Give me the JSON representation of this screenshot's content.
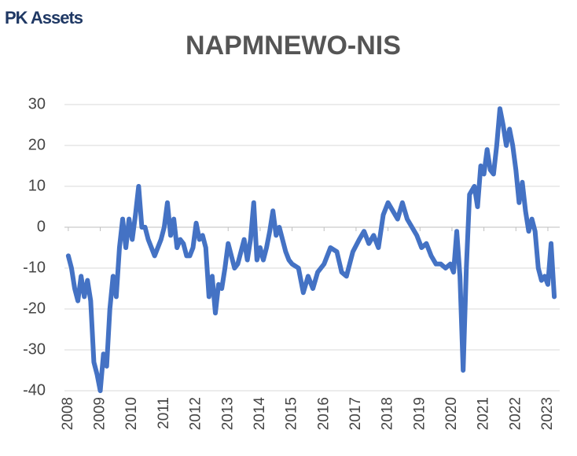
{
  "brand": "PK Assets",
  "chart_data": {
    "type": "line",
    "title": "NAPMNEWO-NIS",
    "x": [
      2008.0,
      2008.1,
      2008.2,
      2008.3,
      2008.4,
      2008.5,
      2008.6,
      2008.7,
      2008.8,
      2008.9,
      2009.0,
      2009.1,
      2009.2,
      2009.3,
      2009.4,
      2009.5,
      2009.6,
      2009.7,
      2009.8,
      2009.9,
      2010.0,
      2010.1,
      2010.2,
      2010.3,
      2010.4,
      2010.5,
      2010.6,
      2010.7,
      2010.8,
      2010.9,
      2011.0,
      2011.1,
      2011.2,
      2011.3,
      2011.4,
      2011.5,
      2011.6,
      2011.7,
      2011.8,
      2011.9,
      2012.0,
      2012.1,
      2012.2,
      2012.3,
      2012.4,
      2012.5,
      2012.6,
      2012.7,
      2012.8,
      2012.9,
      2013.0,
      2013.1,
      2013.2,
      2013.3,
      2013.4,
      2013.5,
      2013.6,
      2013.7,
      2013.8,
      2013.9,
      2014.0,
      2014.1,
      2014.2,
      2014.3,
      2014.4,
      2014.5,
      2014.6,
      2014.7,
      2014.8,
      2014.9,
      2015.0,
      2015.2,
      2015.35,
      2015.5,
      2015.65,
      2015.8,
      2016.0,
      2016.2,
      2016.4,
      2016.55,
      2016.7,
      2016.9,
      2017.1,
      2017.25,
      2017.4,
      2017.55,
      2017.7,
      2017.85,
      2018.0,
      2018.15,
      2018.3,
      2018.45,
      2018.6,
      2018.75,
      2018.9,
      2019.05,
      2019.2,
      2019.35,
      2019.5,
      2019.65,
      2019.8,
      2019.95,
      2020.05,
      2020.15,
      2020.25,
      2020.35,
      2020.45,
      2020.55,
      2020.7,
      2020.8,
      2020.9,
      2021.0,
      2021.1,
      2021.2,
      2021.3,
      2021.4,
      2021.5,
      2021.6,
      2021.7,
      2021.8,
      2021.9,
      2022.0,
      2022.1,
      2022.2,
      2022.3,
      2022.4,
      2022.5,
      2022.6,
      2022.7,
      2022.8,
      2022.9,
      2023.0,
      2023.1,
      2023.2
    ],
    "series": [
      {
        "color": "#4472c4",
        "values": [
          -7,
          -10,
          -15,
          -18,
          -12,
          -17,
          -13,
          -18,
          -33,
          -36,
          -40,
          -31,
          -34,
          -20,
          -12,
          -17,
          -5,
          2,
          -5,
          2,
          -3,
          3,
          10,
          0,
          0,
          -3,
          -5,
          -7,
          -5,
          -3,
          0,
          6,
          -2,
          2,
          -5,
          -3,
          -4,
          -7,
          -7,
          -5,
          1,
          -3,
          -2,
          -5,
          -17,
          -12,
          -21,
          -14,
          -15,
          -10,
          -4,
          -7,
          -10,
          -9,
          -6,
          -3,
          -8,
          -3,
          6,
          -8,
          -5,
          -8,
          -5,
          -1,
          4,
          -2,
          0,
          -3,
          -6,
          -8,
          -9,
          -10,
          -16,
          -12,
          -15,
          -11,
          -9,
          -5,
          -6,
          -11,
          -12,
          -6,
          -3,
          -1,
          -4,
          -2,
          -5,
          3,
          6,
          4,
          2,
          6,
          2,
          0,
          -2,
          -5,
          -4,
          -7,
          -9,
          -9,
          -10,
          -9,
          -11,
          -1,
          -12,
          -35,
          -10,
          8,
          10,
          5,
          15,
          13,
          19,
          14,
          13,
          20,
          29,
          25,
          20,
          24,
          20,
          14,
          6,
          11,
          4,
          -1,
          2,
          -1,
          -10,
          -13,
          -12,
          -14,
          -4,
          -17
        ]
      }
    ],
    "xlim": [
      2007.88,
      2023.37
    ],
    "xticks": [
      2008,
      2009,
      2010,
      2011,
      2012,
      2013,
      2014,
      2015,
      2016,
      2017,
      2018,
      2019,
      2020,
      2021,
      2022,
      2023
    ],
    "ylim": [
      -40,
      30
    ],
    "yticks": [
      -40,
      -30,
      -20,
      -10,
      0,
      10,
      20,
      30
    ],
    "grid": true
  }
}
